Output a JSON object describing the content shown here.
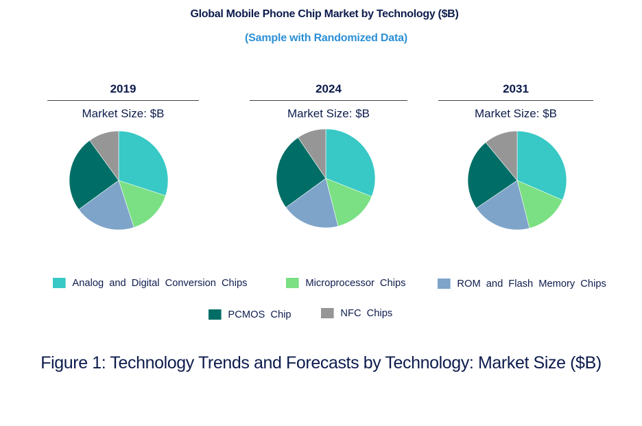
{
  "chart_data": {
    "type": "pie",
    "title": "Global Mobile Phone Chip Market by Technology ($B)",
    "subtitle": "(Sample with Randomized Data)",
    "caption": "Figure 1: Technology Trends and Forecasts by Technology: Market Size ($B)",
    "unit": "percent share",
    "categories": [
      "Analog and Digital Conversion Chips",
      "Microprocessor Chips",
      "ROM and Flash Memory Chips",
      "PCMOS Chip",
      "NFC Chips"
    ],
    "colors": [
      "#38c8c5",
      "#7ae083",
      "#7ea4c9",
      "#006e66",
      "#969696"
    ],
    "pies": [
      {
        "year": "2019",
        "label": "Market Size: $B",
        "values": [
          30,
          15,
          20,
          25,
          10
        ]
      },
      {
        "year": "2024",
        "label": "Market Size: $B",
        "values": [
          31,
          15,
          19,
          25.5,
          9.5
        ]
      },
      {
        "year": "2031",
        "label": "Market Size: $B",
        "values": [
          31.5,
          14.5,
          19.5,
          23.5,
          11
        ]
      }
    ],
    "legend": {
      "placement": "bottom",
      "items": [
        {
          "label": "Analog and Digital Conversion Chips",
          "color": "#38c8c5"
        },
        {
          "label": "Microprocessor Chips",
          "color": "#7ae083"
        },
        {
          "label": "ROM and Flash Memory Chips",
          "color": "#7ea4c9"
        },
        {
          "label": "PCMOS Chip",
          "color": "#006e66"
        },
        {
          "label": "NFC Chips",
          "color": "#969696"
        }
      ]
    }
  }
}
